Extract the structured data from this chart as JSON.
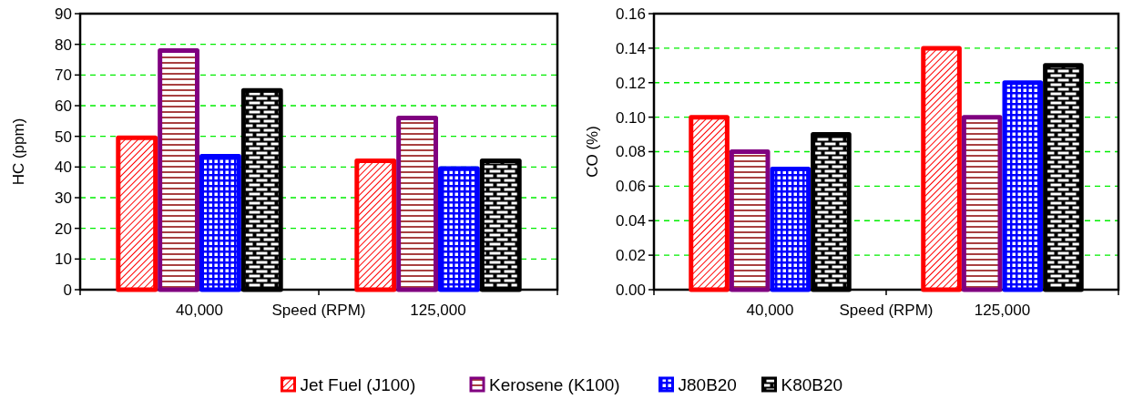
{
  "chart_data": [
    {
      "type": "bar",
      "categories": [
        "40,000",
        "125,000"
      ],
      "xlabel": "Speed (RPM)",
      "ylabel": "HC (ppm)",
      "ylim": [
        0,
        90
      ],
      "yticks": [
        0,
        10,
        20,
        30,
        40,
        50,
        60,
        70,
        80,
        90
      ],
      "grid": "y",
      "legend": "bottom",
      "series": [
        {
          "name": "Jet Fuel (J100)",
          "color": "#ff0000",
          "values": [
            49.5,
            42
          ]
        },
        {
          "name": "Kerosene (K100)",
          "color": "#800080",
          "values": [
            78,
            56
          ]
        },
        {
          "name": "J80B20",
          "color": "#0000ff",
          "values": [
            43.5,
            39.5
          ]
        },
        {
          "name": "K80B20",
          "color": "#000000",
          "values": [
            65,
            42
          ]
        }
      ]
    },
    {
      "type": "bar",
      "categories": [
        "40,000",
        "125,000"
      ],
      "xlabel": "Speed (RPM)",
      "ylabel": "CO (%)",
      "ylim": [
        0,
        0.16
      ],
      "yticks": [
        {
          "value": 0,
          "label": "0.00"
        },
        {
          "value": 0.02,
          "label": "0.02"
        },
        {
          "value": 0.04,
          "label": "0.04"
        },
        {
          "value": 0.06,
          "label": "0.06"
        },
        {
          "value": 0.08,
          "label": "0.08"
        },
        {
          "value": 0.1,
          "label": "0.10"
        },
        {
          "value": 0.12,
          "label": "0.12"
        },
        {
          "value": 0.14,
          "label": "0.14"
        },
        {
          "value": 0.16,
          "label": "0.16"
        }
      ],
      "grid": "y",
      "series": [
        {
          "color": "#ff0000",
          "values": [
            0.1,
            0.14
          ]
        },
        {
          "color": "#800080",
          "values": [
            0.08,
            0.1
          ]
        },
        {
          "color": "#0000ff",
          "values": [
            0.07,
            0.12
          ]
        },
        {
          "color": "#000000",
          "values": [
            0.09,
            0.13
          ]
        }
      ]
    }
  ]
}
